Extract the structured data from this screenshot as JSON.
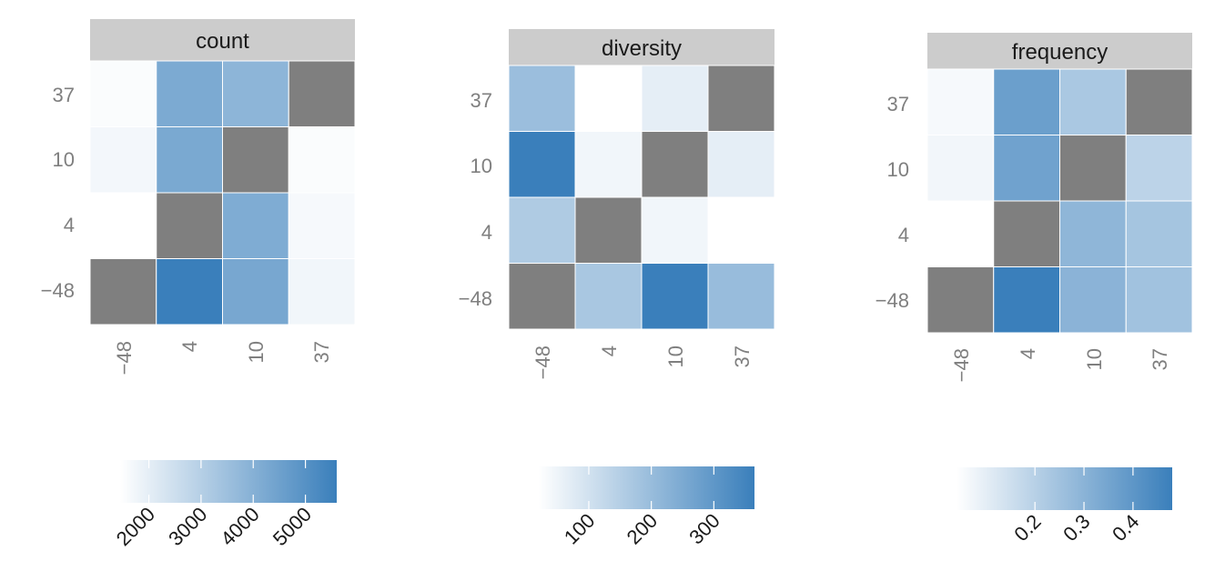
{
  "colors": {
    "low": "#ffffff",
    "high": "#3a7fbb",
    "diagonal": "#7f7f7f",
    "strip_background": "#cccccc",
    "tick_text": "#7f7f7f",
    "strip_text": "#1a1a1a"
  },
  "chart_data": [
    {
      "type": "heatmap",
      "title": "count",
      "x_categories": [
        "−48",
        "4",
        "10",
        "37"
      ],
      "y_categories": [
        "−48",
        "4",
        "10",
        "37"
      ],
      "values": [
        [
          null,
          5600,
          4300,
          1750
        ],
        [
          1450,
          null,
          4150,
          1650
        ],
        [
          1700,
          4250,
          null,
          1550
        ],
        [
          1550,
          4200,
          3850,
          null
        ]
      ],
      "color_range": [
        1450,
        5600
      ],
      "legend": {
        "position": "bottom",
        "ticks": [
          2000,
          3000,
          4000,
          5000
        ],
        "tick_labels": [
          "2000",
          "3000",
          "4000",
          "5000"
        ]
      }
    },
    {
      "type": "heatmap",
      "title": "diversity",
      "x_categories": [
        "−48",
        "4",
        "10",
        "37"
      ],
      "y_categories": [
        "−48",
        "4",
        "10",
        "37"
      ],
      "values": [
        [
          null,
          170,
          365,
          200
        ],
        [
          160,
          null,
          45,
          20
        ],
        [
          365,
          45,
          null,
          65
        ],
        [
          195,
          20,
          65,
          null
        ]
      ],
      "color_range": [
        20,
        365
      ],
      "legend": {
        "position": "bottom",
        "ticks": [
          100,
          200,
          300
        ],
        "tick_labels": [
          "100",
          "200",
          "300"
        ]
      }
    },
    {
      "type": "heatmap",
      "title": "frequency",
      "x_categories": [
        "−48",
        "4",
        "10",
        "37"
      ],
      "y_categories": [
        "−48",
        "4",
        "10",
        "37"
      ],
      "values": [
        [
          null,
          0.48,
          0.3,
          0.25
        ],
        [
          0.04,
          null,
          0.29,
          0.24
        ],
        [
          0.07,
          0.36,
          null,
          0.19
        ],
        [
          0.06,
          0.37,
          0.23,
          null
        ]
      ],
      "color_range": [
        0.04,
        0.48
      ],
      "legend": {
        "position": "bottom",
        "ticks": [
          0.2,
          0.3,
          0.4
        ],
        "tick_labels": [
          "0.2",
          "0.3",
          "0.4"
        ]
      }
    }
  ]
}
